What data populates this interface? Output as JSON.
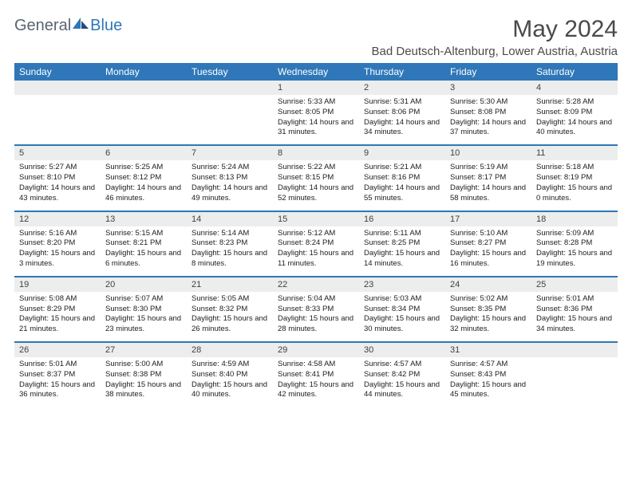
{
  "brand": {
    "part1": "General",
    "part2": "Blue"
  },
  "title": "May 2024",
  "location": "Bad Deutsch-Altenburg, Lower Austria, Austria",
  "headers": [
    "Sunday",
    "Monday",
    "Tuesday",
    "Wednesday",
    "Thursday",
    "Friday",
    "Saturday"
  ],
  "colors": {
    "accent": "#2f77b8",
    "headerNumBg": "#eceded",
    "text": "#202020"
  },
  "weeks": [
    {
      "nums": [
        "",
        "",
        "",
        "1",
        "2",
        "3",
        "4"
      ],
      "cells": [
        "",
        "",
        "",
        "Sunrise: 5:33 AM\nSunset: 8:05 PM\nDaylight: 14 hours and 31 minutes.",
        "Sunrise: 5:31 AM\nSunset: 8:06 PM\nDaylight: 14 hours and 34 minutes.",
        "Sunrise: 5:30 AM\nSunset: 8:08 PM\nDaylight: 14 hours and 37 minutes.",
        "Sunrise: 5:28 AM\nSunset: 8:09 PM\nDaylight: 14 hours and 40 minutes."
      ]
    },
    {
      "nums": [
        "5",
        "6",
        "7",
        "8",
        "9",
        "10",
        "11"
      ],
      "cells": [
        "Sunrise: 5:27 AM\nSunset: 8:10 PM\nDaylight: 14 hours and 43 minutes.",
        "Sunrise: 5:25 AM\nSunset: 8:12 PM\nDaylight: 14 hours and 46 minutes.",
        "Sunrise: 5:24 AM\nSunset: 8:13 PM\nDaylight: 14 hours and 49 minutes.",
        "Sunrise: 5:22 AM\nSunset: 8:15 PM\nDaylight: 14 hours and 52 minutes.",
        "Sunrise: 5:21 AM\nSunset: 8:16 PM\nDaylight: 14 hours and 55 minutes.",
        "Sunrise: 5:19 AM\nSunset: 8:17 PM\nDaylight: 14 hours and 58 minutes.",
        "Sunrise: 5:18 AM\nSunset: 8:19 PM\nDaylight: 15 hours and 0 minutes."
      ]
    },
    {
      "nums": [
        "12",
        "13",
        "14",
        "15",
        "16",
        "17",
        "18"
      ],
      "cells": [
        "Sunrise: 5:16 AM\nSunset: 8:20 PM\nDaylight: 15 hours and 3 minutes.",
        "Sunrise: 5:15 AM\nSunset: 8:21 PM\nDaylight: 15 hours and 6 minutes.",
        "Sunrise: 5:14 AM\nSunset: 8:23 PM\nDaylight: 15 hours and 8 minutes.",
        "Sunrise: 5:12 AM\nSunset: 8:24 PM\nDaylight: 15 hours and 11 minutes.",
        "Sunrise: 5:11 AM\nSunset: 8:25 PM\nDaylight: 15 hours and 14 minutes.",
        "Sunrise: 5:10 AM\nSunset: 8:27 PM\nDaylight: 15 hours and 16 minutes.",
        "Sunrise: 5:09 AM\nSunset: 8:28 PM\nDaylight: 15 hours and 19 minutes."
      ]
    },
    {
      "nums": [
        "19",
        "20",
        "21",
        "22",
        "23",
        "24",
        "25"
      ],
      "cells": [
        "Sunrise: 5:08 AM\nSunset: 8:29 PM\nDaylight: 15 hours and 21 minutes.",
        "Sunrise: 5:07 AM\nSunset: 8:30 PM\nDaylight: 15 hours and 23 minutes.",
        "Sunrise: 5:05 AM\nSunset: 8:32 PM\nDaylight: 15 hours and 26 minutes.",
        "Sunrise: 5:04 AM\nSunset: 8:33 PM\nDaylight: 15 hours and 28 minutes.",
        "Sunrise: 5:03 AM\nSunset: 8:34 PM\nDaylight: 15 hours and 30 minutes.",
        "Sunrise: 5:02 AM\nSunset: 8:35 PM\nDaylight: 15 hours and 32 minutes.",
        "Sunrise: 5:01 AM\nSunset: 8:36 PM\nDaylight: 15 hours and 34 minutes."
      ]
    },
    {
      "nums": [
        "26",
        "27",
        "28",
        "29",
        "30",
        "31",
        ""
      ],
      "cells": [
        "Sunrise: 5:01 AM\nSunset: 8:37 PM\nDaylight: 15 hours and 36 minutes.",
        "Sunrise: 5:00 AM\nSunset: 8:38 PM\nDaylight: 15 hours and 38 minutes.",
        "Sunrise: 4:59 AM\nSunset: 8:40 PM\nDaylight: 15 hours and 40 minutes.",
        "Sunrise: 4:58 AM\nSunset: 8:41 PM\nDaylight: 15 hours and 42 minutes.",
        "Sunrise: 4:57 AM\nSunset: 8:42 PM\nDaylight: 15 hours and 44 minutes.",
        "Sunrise: 4:57 AM\nSunset: 8:43 PM\nDaylight: 15 hours and 45 minutes.",
        ""
      ]
    }
  ]
}
